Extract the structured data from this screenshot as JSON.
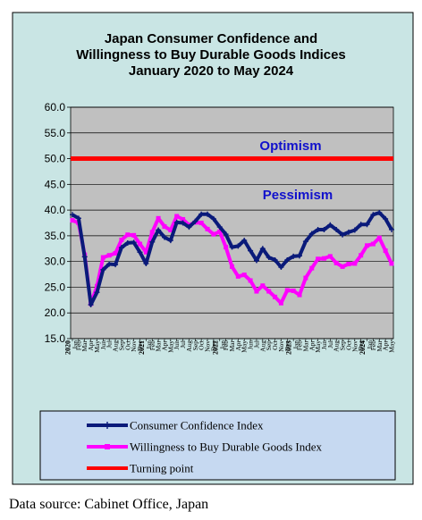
{
  "chart_data": {
    "type": "line",
    "title": [
      "Japan Consumer Confidence and",
      "Willingness to Buy Durable Goods Indices",
      "January 2020 to May 2024"
    ],
    "ylim": [
      15.0,
      60.0
    ],
    "yticks": [
      "15.0",
      "20.0",
      "25.0",
      "30.0",
      "35.0",
      "40.0",
      "45.0",
      "50.0",
      "55.0",
      "60.0"
    ],
    "grid": true,
    "legend_position": "bottom",
    "months": [
      "Jan",
      "Feb",
      "Mar",
      "Apr",
      "May",
      "Jun",
      "Jul",
      "Aug",
      "Sep",
      "Oct",
      "Nov",
      "Dec"
    ],
    "start_year": "2020",
    "year_labels": [
      {
        "index": 0,
        "label": "2020"
      },
      {
        "index": 12,
        "label": "2021"
      },
      {
        "index": 24,
        "label": "2022"
      },
      {
        "index": 36,
        "label": "2023"
      },
      {
        "index": 48,
        "label": "2024"
      }
    ],
    "annotations": {
      "above": "Optimism",
      "below": "Pessimism"
    },
    "series": [
      {
        "name": "Consumer Confidence Index",
        "color": "#0a1a7a",
        "marker": "star",
        "values": [
          39.1,
          38.4,
          30.9,
          21.6,
          24.0,
          28.4,
          29.5,
          29.4,
          32.7,
          33.6,
          33.7,
          31.8,
          29.6,
          33.8,
          36.1,
          34.7,
          34.1,
          37.6,
          37.5,
          36.7,
          37.8,
          39.2,
          39.2,
          38.3,
          36.7,
          35.3,
          32.8,
          33.0,
          34.1,
          32.1,
          30.2,
          32.5,
          30.8,
          30.3,
          28.9,
          30.3,
          31.0,
          31.1,
          33.9,
          35.4,
          36.2,
          36.2,
          37.1,
          36.2,
          35.2,
          35.7,
          36.1,
          37.2,
          37.2,
          39.1,
          39.5,
          38.3,
          36.2
        ]
      },
      {
        "name": "Willingness to Buy Durable Goods Index",
        "color": "#ff00ff",
        "marker": "square",
        "values": [
          38.0,
          37.5,
          31.3,
          21.8,
          25.2,
          30.8,
          31.2,
          31.6,
          34.2,
          35.2,
          35.1,
          33.4,
          31.8,
          35.7,
          38.4,
          36.8,
          36.1,
          38.8,
          38.2,
          37.1,
          37.6,
          37.5,
          36.3,
          35.3,
          35.8,
          32.8,
          29.0,
          27.1,
          27.4,
          26.3,
          24.2,
          25.3,
          24.2,
          23.1,
          21.9,
          24.4,
          24.3,
          23.5,
          26.8,
          28.7,
          30.5,
          30.6,
          31.0,
          29.7,
          29.0,
          29.5,
          29.6,
          31.2,
          33.1,
          33.4,
          34.6,
          32.1,
          29.6
        ]
      },
      {
        "name": "Turning point",
        "color": "#ff0000",
        "marker": "none",
        "values": [
          50.0
        ]
      }
    ]
  },
  "source_text": "Data source: Cabinet Office, Japan"
}
